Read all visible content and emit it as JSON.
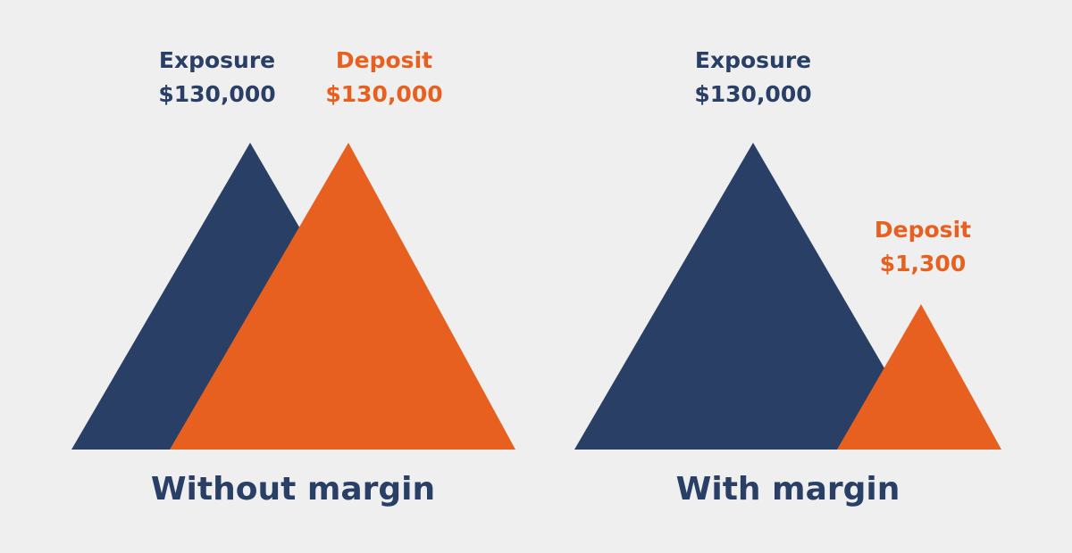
{
  "colors": {
    "background": "#efefef",
    "exposure": "#293f66",
    "deposit": "#e8601f"
  },
  "panels": [
    {
      "caption": "Without margin",
      "exposure": {
        "label": "Exposure",
        "value": "$130,000"
      },
      "deposit": {
        "label": "Deposit",
        "value": "$130,000"
      }
    },
    {
      "caption": "With margin",
      "exposure": {
        "label": "Exposure",
        "value": "$130,000"
      },
      "deposit": {
        "label": "Deposit",
        "value": "$1,300"
      }
    }
  ]
}
